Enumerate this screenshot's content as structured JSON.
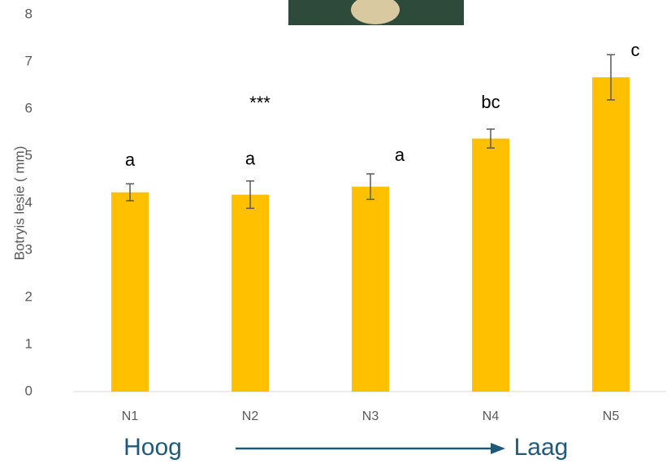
{
  "chart_data": {
    "type": "bar",
    "y_label": "Botryis lesie ( mm)",
    "categories": [
      "N1",
      "N2",
      "N3",
      "N4",
      "N5"
    ],
    "values": [
      4.23,
      4.18,
      4.35,
      5.37,
      6.67
    ],
    "errors": [
      0.18,
      0.29,
      0.27,
      0.2,
      0.48
    ],
    "letters": [
      "a",
      "a",
      "a",
      "bc",
      "c"
    ],
    "color": "#ffc000",
    "error_color": "#595959",
    "ylim": [
      0,
      8
    ],
    "yticks": [
      0,
      1,
      2,
      3,
      4,
      5,
      6,
      7,
      8
    ],
    "annotation": "***",
    "arrow_start": "Hoog",
    "arrow_end": "Laag"
  }
}
